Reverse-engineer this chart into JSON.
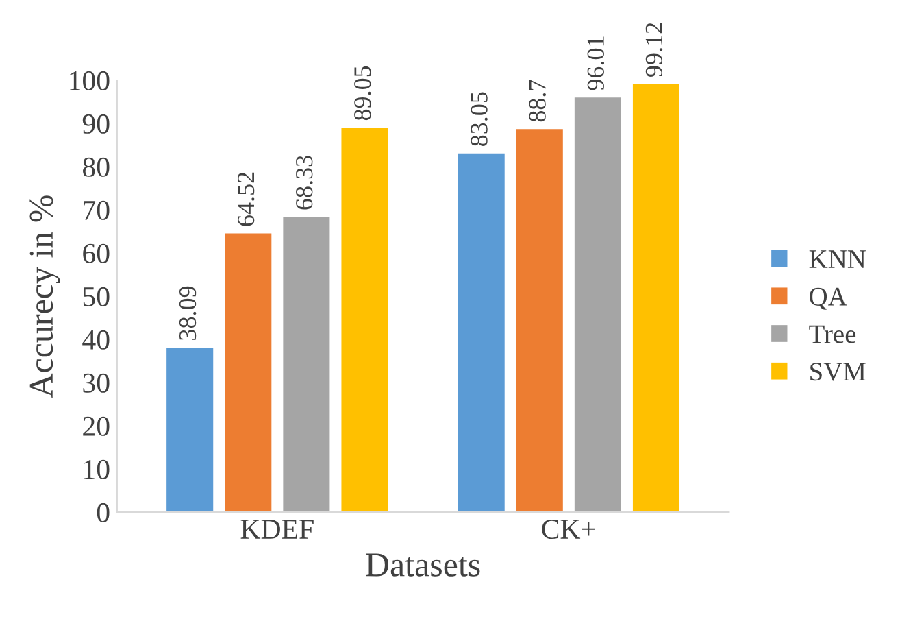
{
  "chart_data": {
    "type": "bar",
    "xlabel": "Datasets",
    "ylabel": "Accurecy in %",
    "categories": [
      "KDEF",
      "CK+"
    ],
    "series": [
      {
        "name": "KNN",
        "color": "#5b9bd5",
        "values": [
          38.09,
          83.05
        ]
      },
      {
        "name": "QA",
        "color": "#ed7d31",
        "values": [
          64.52,
          88.7
        ]
      },
      {
        "name": "Tree",
        "color": "#a5a5a5",
        "values": [
          68.33,
          96.01
        ]
      },
      {
        "name": "SVM",
        "color": "#ffc000",
        "values": [
          89.05,
          99.12
        ]
      }
    ],
    "ylim": [
      0,
      100
    ],
    "yticks": [
      0,
      10,
      20,
      30,
      40,
      50,
      60,
      70,
      80,
      90,
      100
    ],
    "data_labels": true,
    "legend": "right",
    "grid": false
  }
}
